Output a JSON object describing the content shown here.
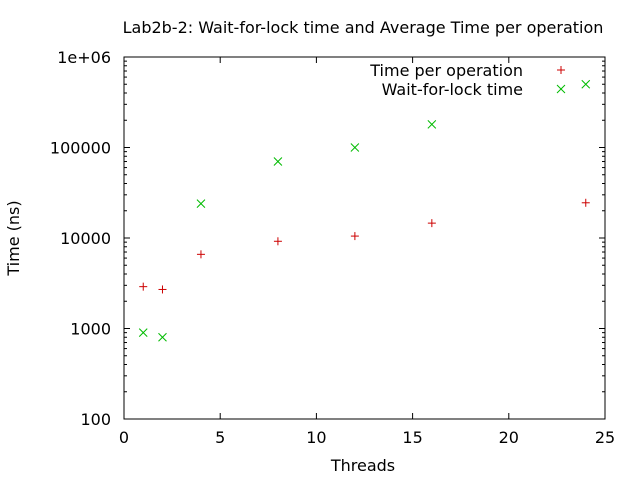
{
  "chart_data": {
    "type": "scatter",
    "title": "Lab2b-2: Wait-for-lock time and Average Time per operation",
    "xlabel": "Threads",
    "ylabel": "Time (ns)",
    "xlim": [
      0,
      25
    ],
    "ylim": [
      100,
      1000000
    ],
    "yscale": "log",
    "grid": false,
    "legend_position": "top-right",
    "x_ticks": [
      {
        "value": 0,
        "label": "0"
      },
      {
        "value": 5,
        "label": "5"
      },
      {
        "value": 10,
        "label": "10"
      },
      {
        "value": 15,
        "label": "15"
      },
      {
        "value": 20,
        "label": "20"
      },
      {
        "value": 25,
        "label": "25"
      }
    ],
    "y_ticks": [
      {
        "value": 100,
        "label": "100"
      },
      {
        "value": 1000,
        "label": "1000"
      },
      {
        "value": 10000,
        "label": "10000"
      },
      {
        "value": 100000,
        "label": "100000"
      },
      {
        "value": 1000000,
        "label": "1e+06"
      }
    ],
    "series": [
      {
        "name": "Time per operation",
        "marker": "plus",
        "color": "#cc0000",
        "x": [
          1,
          2,
          4,
          8,
          12,
          16,
          24
        ],
        "y": [
          2900,
          2700,
          6600,
          9200,
          10500,
          14600,
          24500
        ]
      },
      {
        "name": "Wait-for-lock time",
        "marker": "cross",
        "color": "#00bb00",
        "x": [
          1,
          2,
          4,
          8,
          12,
          16,
          24
        ],
        "y": [
          900,
          800,
          24000,
          70000,
          100000,
          180000,
          500000
        ]
      }
    ]
  }
}
